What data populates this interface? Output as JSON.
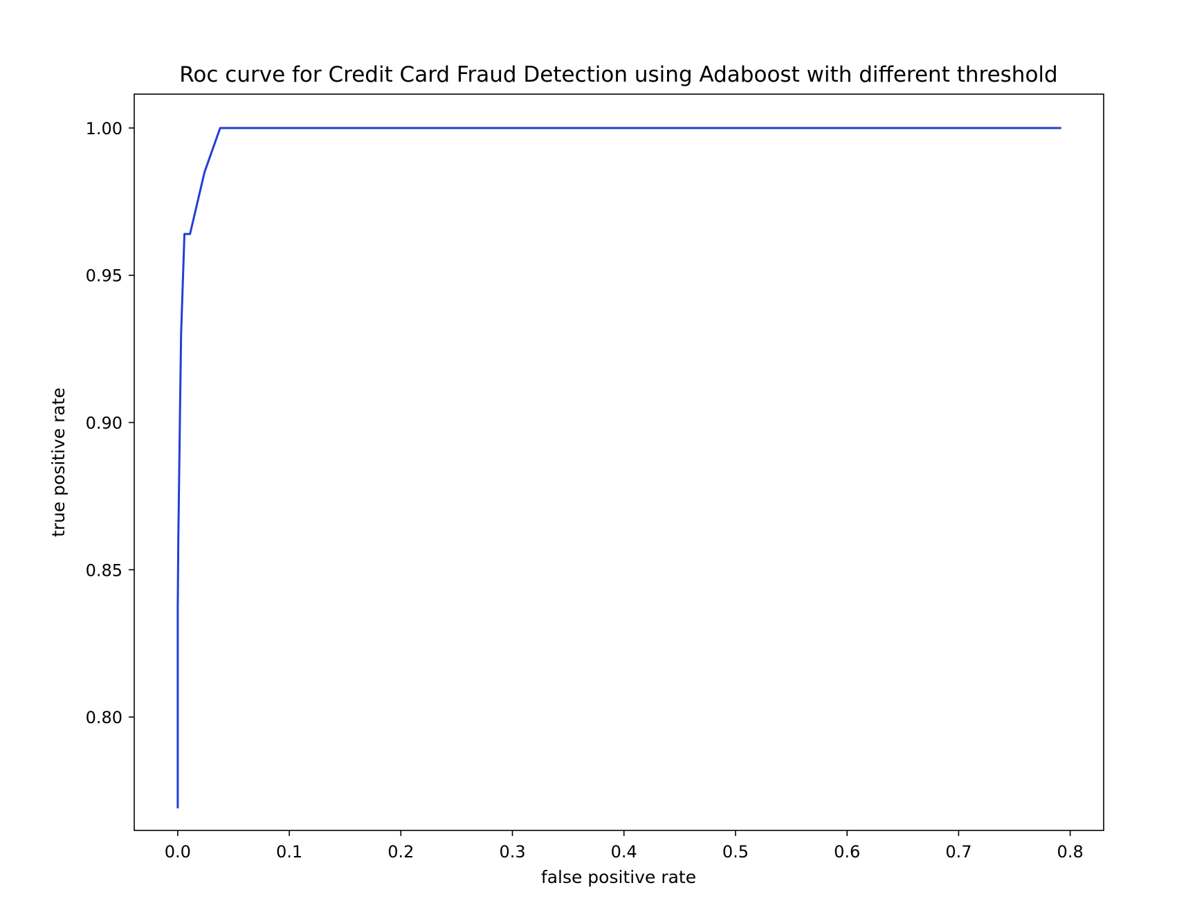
{
  "chart_data": {
    "type": "line",
    "title": "Roc curve for Credit Card Fraud Detection using Adaboost with different threshold",
    "xlabel": "false positive rate",
    "ylabel": "true positive rate",
    "xlim": [
      -0.039,
      0.83
    ],
    "ylim": [
      0.7615,
      1.0115
    ],
    "xticks": [
      0.0,
      0.1,
      0.2,
      0.3,
      0.4,
      0.5,
      0.6,
      0.7,
      0.8
    ],
    "xtick_labels": [
      "0.0",
      "0.1",
      "0.2",
      "0.3",
      "0.4",
      "0.5",
      "0.6",
      "0.7",
      "0.8"
    ],
    "yticks": [
      0.8,
      0.85,
      0.9,
      0.95,
      1.0
    ],
    "ytick_labels": [
      "0.80",
      "0.85",
      "0.90",
      "0.95",
      "1.00"
    ],
    "grid": false,
    "series": [
      {
        "color": "#1f3fd6",
        "x": [
          0.0,
          0.0,
          0.0005,
          0.002,
          0.003,
          0.006,
          0.011,
          0.024,
          0.038,
          0.1,
          0.2,
          0.3,
          0.4,
          0.5,
          0.6,
          0.7,
          0.792
        ],
        "y": [
          0.769,
          0.837,
          0.86,
          0.903,
          0.93,
          0.964,
          0.964,
          0.985,
          1.0,
          1.0,
          1.0,
          1.0,
          1.0,
          1.0,
          1.0,
          1.0,
          1.0
        ]
      }
    ]
  }
}
